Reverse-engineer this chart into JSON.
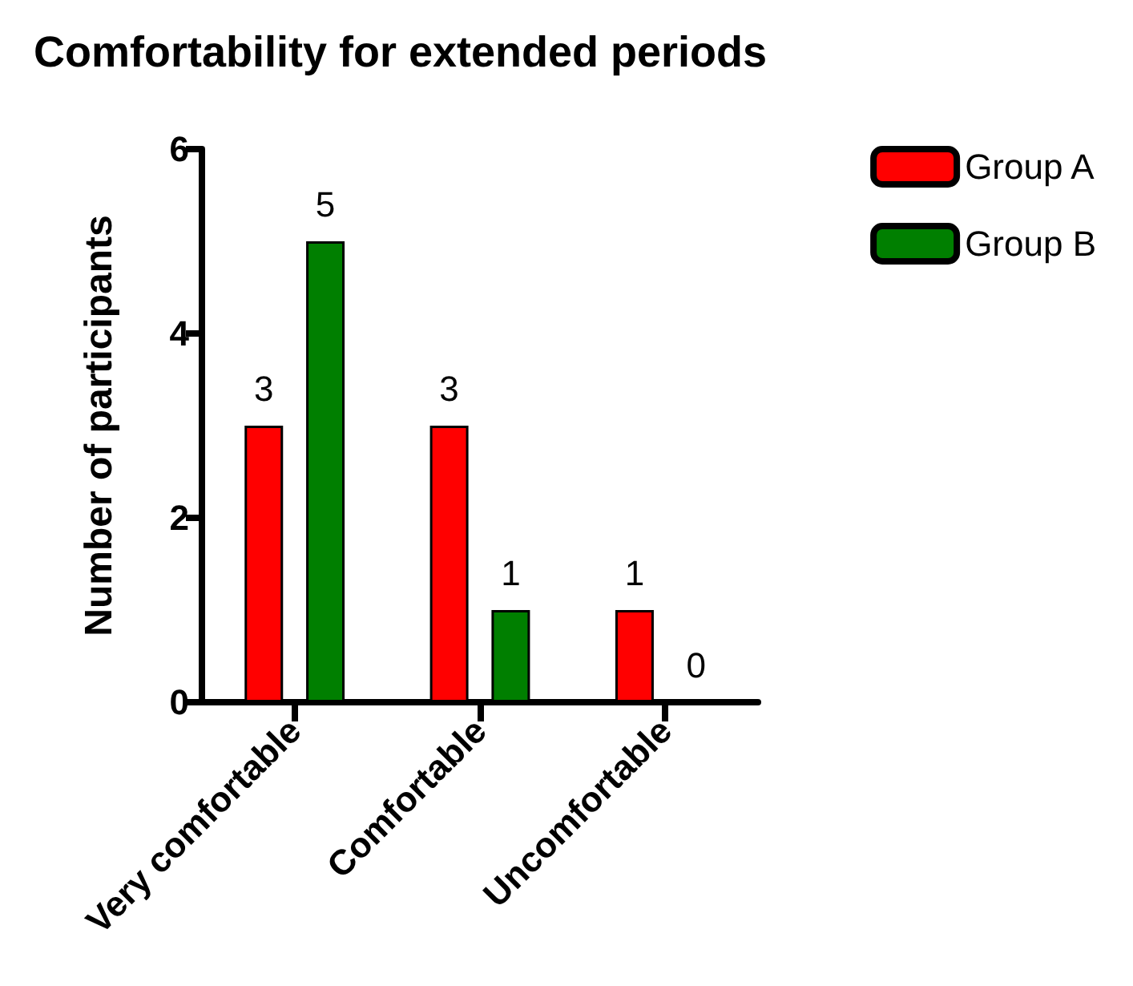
{
  "chart_data": {
    "type": "bar",
    "title": "Comfortability for extended periods",
    "ylabel": "Number of participants",
    "categories": [
      "Very comfortable",
      "Comfortable",
      "Uncomfortable"
    ],
    "series": [
      {
        "name": "Group A",
        "color": "#ff0000",
        "values": [
          3,
          3,
          1
        ]
      },
      {
        "name": "Group B",
        "color": "#007f00",
        "values": [
          5,
          1,
          0
        ]
      }
    ],
    "ylim": [
      0,
      6
    ],
    "yticks": [
      0,
      2,
      4,
      6
    ],
    "grid": false,
    "legend": "top right",
    "data_labels": true
  }
}
